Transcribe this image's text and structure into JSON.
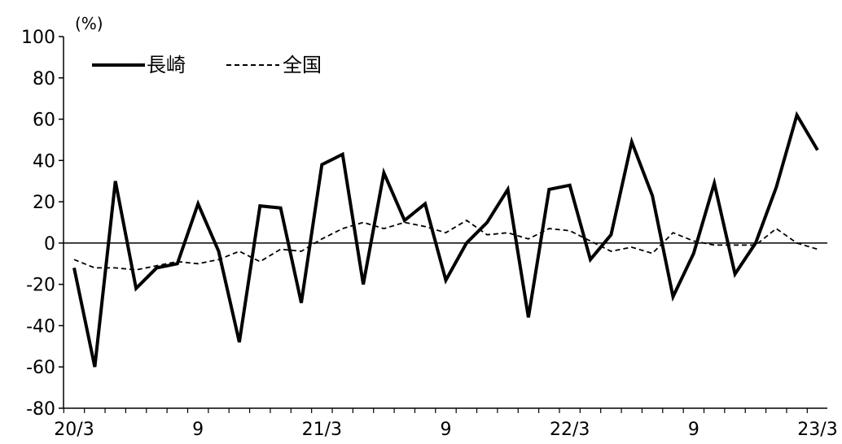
{
  "chart_data": {
    "type": "line",
    "title": "",
    "xlabel": "",
    "ylabel": "(%)",
    "ylim": [
      -80,
      100
    ],
    "y_ticks": [
      100,
      80,
      60,
      40,
      20,
      0,
      -20,
      -40,
      -60,
      -80
    ],
    "grid": false,
    "legend_position": "top-left",
    "x": [
      "20/3",
      "20/4",
      "20/5",
      "20/6",
      "20/7",
      "20/8",
      "20/9",
      "20/10",
      "20/11",
      "20/12",
      "21/1",
      "21/2",
      "21/3",
      "21/4",
      "21/5",
      "21/6",
      "21/7",
      "21/8",
      "21/9",
      "21/10",
      "21/11",
      "21/12",
      "22/1",
      "22/2",
      "22/3",
      "22/4",
      "22/5",
      "22/6",
      "22/7",
      "22/8",
      "22/9",
      "22/10",
      "22/11",
      "22/12",
      "23/1",
      "23/2",
      "23/3"
    ],
    "x_tick_labels": [
      {
        "index": 0,
        "label": "20/3"
      },
      {
        "index": 6,
        "label": "9"
      },
      {
        "index": 12,
        "label": "21/3"
      },
      {
        "index": 18,
        "label": "9"
      },
      {
        "index": 24,
        "label": "22/3"
      },
      {
        "index": 30,
        "label": "9"
      },
      {
        "index": 36,
        "label": "23/3"
      }
    ],
    "series": [
      {
        "name": "長崎",
        "color": "#000000",
        "style": "solid",
        "values": [
          -12,
          -60,
          30,
          -22,
          -12,
          -10,
          19,
          -4,
          -48,
          18,
          17,
          -29,
          38,
          43,
          -20,
          34,
          11,
          19,
          -18,
          0,
          10,
          26,
          -36,
          26,
          28,
          -8,
          4,
          49,
          23,
          -26,
          -5,
          29,
          -15,
          0,
          27,
          62,
          45
        ]
      },
      {
        "name": "全国",
        "color": "#000000",
        "style": "dashed",
        "values": [
          -8,
          -12,
          -12,
          -13,
          -11,
          -9,
          -10,
          -8,
          -4,
          -9,
          -3,
          -4,
          2,
          7,
          10,
          7,
          10,
          8,
          5,
          11,
          4,
          5,
          2,
          7,
          6,
          1,
          -4,
          -2,
          -5,
          5,
          1,
          -1,
          -1,
          -1,
          7,
          0,
          -3
        ]
      }
    ]
  }
}
